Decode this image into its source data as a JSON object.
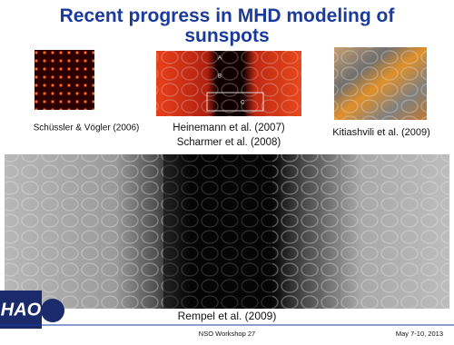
{
  "header": {
    "title": "Recent progress in MHD modeling of sunspots"
  },
  "figures": {
    "left": {
      "caption": "Schüssler & Vögler (2006)"
    },
    "middle": {
      "captions": [
        "Heinemann et al. (2007)",
        "Scharmer et al. (2008)"
      ],
      "labels": [
        "A",
        "B",
        "C"
      ]
    },
    "right": {
      "caption": "Kitiashvili et al. (2009)"
    },
    "bottom": {
      "caption": "Rempel et al. (2009)"
    }
  },
  "logo": {
    "text": "HAO"
  },
  "footer": {
    "center": "NSO Workshop 27",
    "right": "May 7-10, 2013"
  }
}
